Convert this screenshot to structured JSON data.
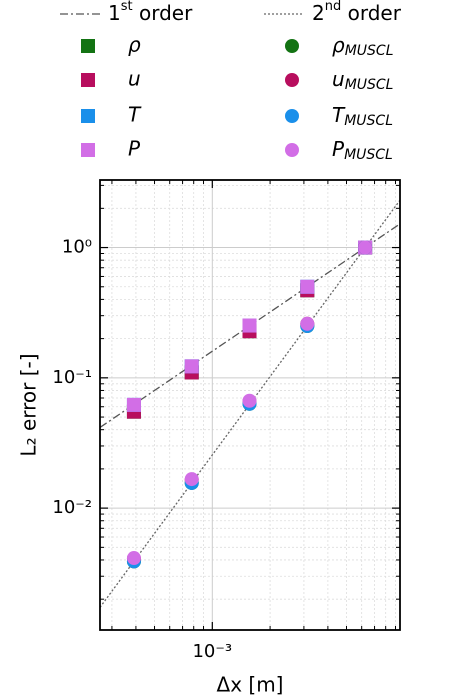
{
  "chart_data": {
    "type": "scatter",
    "xlabel": "Δx [m]",
    "ylabel": "L₂ error [-]",
    "xscale": "log",
    "yscale": "log",
    "grid": true,
    "xlim": [
      0.00026,
      0.0095
    ],
    "ylim": [
      0.00116,
      3.3
    ],
    "xticks": [
      {
        "value": 0.001,
        "label": "10⁻³"
      }
    ],
    "yticks": [
      {
        "value": 0.01,
        "label": "10⁻²"
      },
      {
        "value": 0.1,
        "label": "10⁻¹"
      },
      {
        "value": 1,
        "label": "10⁰"
      }
    ],
    "xticks_minor": [
      0.0003,
      0.0004,
      0.0005,
      0.0006,
      0.0007,
      0.0008,
      0.0009,
      0.002,
      0.003,
      0.004,
      0.005,
      0.006,
      0.007,
      0.008,
      0.009
    ],
    "yticks_minor": [
      0.002,
      0.003,
      0.004,
      0.005,
      0.006,
      0.007,
      0.008,
      0.009,
      0.02,
      0.03,
      0.04,
      0.05,
      0.06,
      0.07,
      0.08,
      0.09,
      0.2,
      0.3,
      0.4,
      0.5,
      0.6,
      0.7,
      0.8,
      0.9,
      2,
      3
    ],
    "series": [
      {
        "name": "1st order",
        "kind": "line",
        "dash": "dashdot",
        "color": "#555555",
        "x": [
          0.00026,
          0.0095
        ],
        "values": [
          0.0416,
          1.52
        ]
      },
      {
        "name": "ρ",
        "kind": "square",
        "color": "#137313",
        "x": [
          0.000390625,
          0.00078125,
          0.0015625,
          0.003125,
          0.00625
        ],
        "values": [
          0.055,
          0.11,
          0.228,
          0.47,
          1.0
        ]
      },
      {
        "name": "u",
        "kind": "square",
        "color": "#b80e5e",
        "x": [
          0.000390625,
          0.00078125,
          0.0015625,
          0.003125,
          0.00625
        ],
        "values": [
          0.055,
          0.11,
          0.228,
          0.47,
          1.0
        ]
      },
      {
        "name": "T",
        "kind": "square",
        "color": "#1a8fea",
        "x": [
          0.000390625,
          0.00078125,
          0.0015625,
          0.003125,
          0.00625
        ],
        "values": [
          0.062,
          0.1225,
          0.252,
          0.5,
          1.0
        ]
      },
      {
        "name": "P",
        "kind": "square",
        "color": "#d26ee6",
        "x": [
          0.000390625,
          0.00078125,
          0.0015625,
          0.003125,
          0.00625
        ],
        "values": [
          0.062,
          0.1225,
          0.252,
          0.5,
          1.0
        ]
      },
      {
        "name": "2nd order",
        "kind": "line",
        "dash": "dotted",
        "color": "#666666",
        "x": [
          0.00026,
          0.0095
        ],
        "values": [
          0.00173,
          2.31
        ]
      },
      {
        "name": "ρMUSCL",
        "kind": "circle",
        "color": "#137313",
        "x": [
          0.000390625,
          0.00078125,
          0.0015625,
          0.003125,
          0.00625
        ],
        "values": [
          0.0039,
          0.0156,
          0.0632,
          0.25,
          1.0
        ]
      },
      {
        "name": "uMUSCL",
        "kind": "circle",
        "color": "#b80e5e",
        "x": [
          0.000390625,
          0.00078125,
          0.0015625,
          0.003125,
          0.00625
        ],
        "values": [
          0.0041,
          0.0165,
          0.066,
          0.26,
          1.0
        ]
      },
      {
        "name": "TMUSCL",
        "kind": "circle",
        "color": "#1a8fea",
        "x": [
          0.000390625,
          0.00078125,
          0.0015625,
          0.003125,
          0.00625
        ],
        "values": [
          0.0039,
          0.0156,
          0.0632,
          0.25,
          1.0
        ]
      },
      {
        "name": "PMUSCL",
        "kind": "circle",
        "color": "#d26ee6",
        "x": [
          0.000390625,
          0.00078125,
          0.0015625,
          0.003125,
          0.00625
        ],
        "values": [
          0.00414,
          0.0167,
          0.0667,
          0.26,
          1.0
        ]
      }
    ]
  }
}
